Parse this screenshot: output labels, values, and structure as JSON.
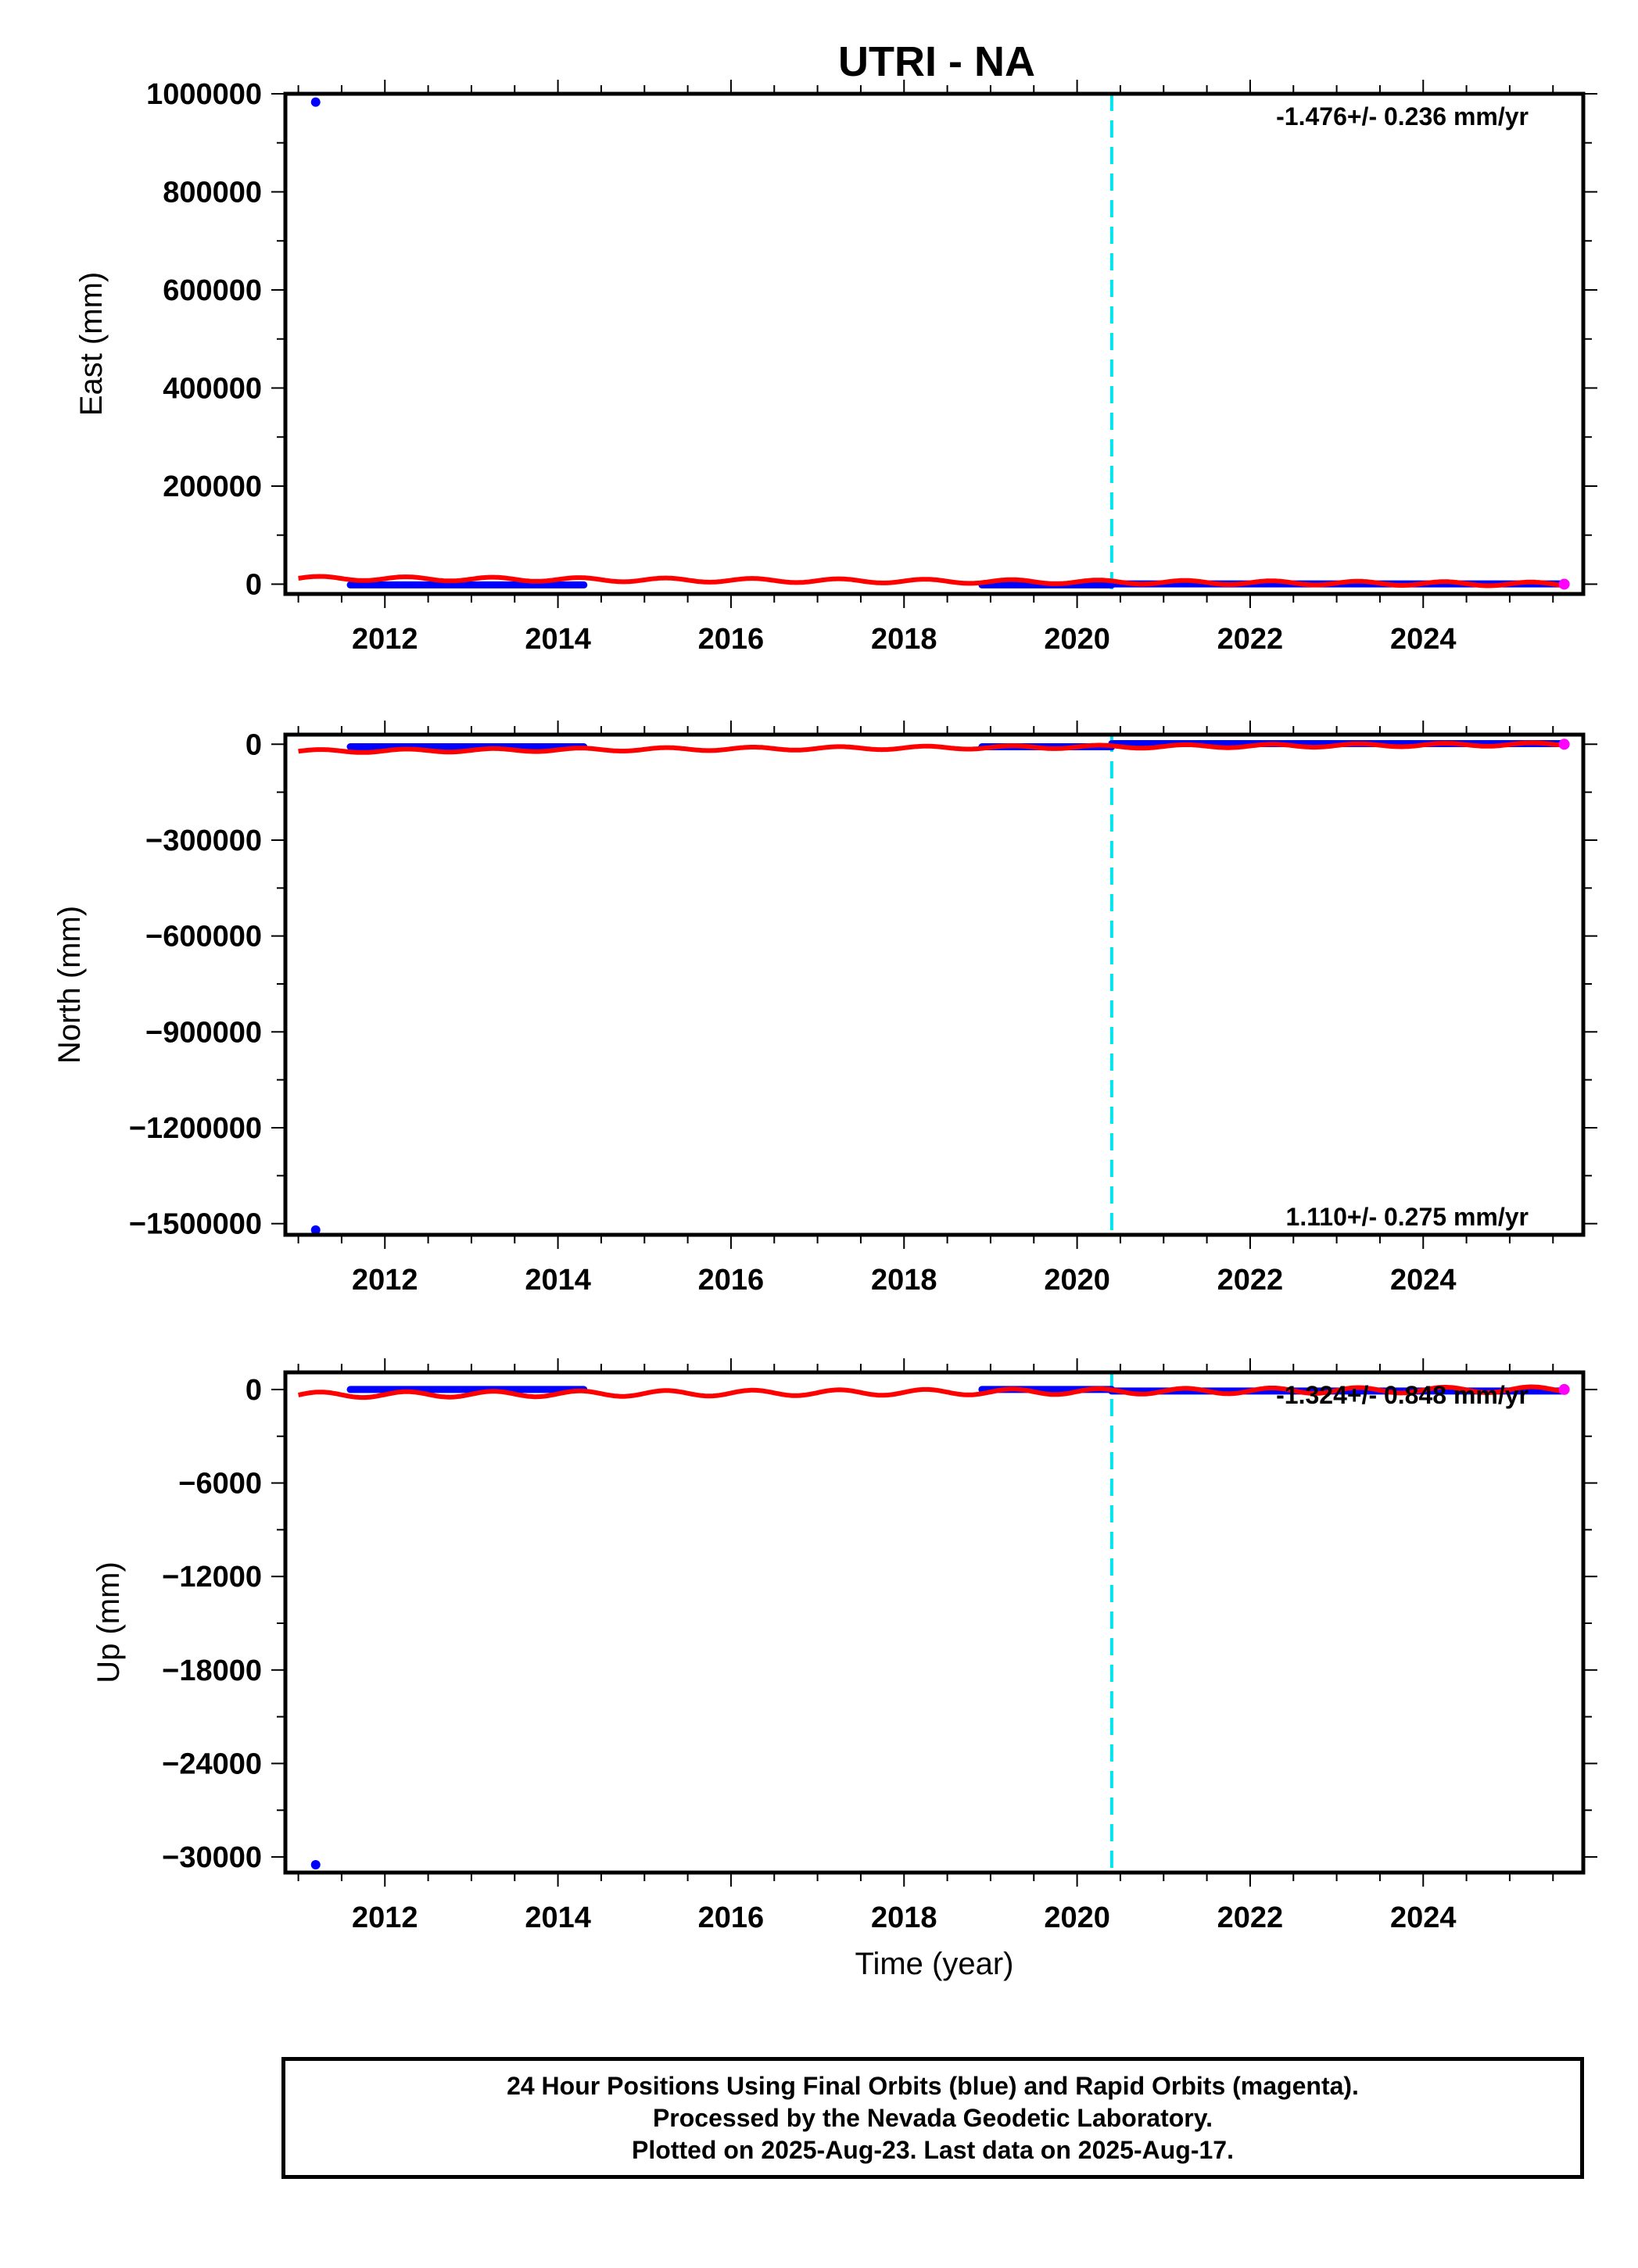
{
  "title": "UTRI - NA",
  "footer": {
    "line1": "24 Hour Positions Using Final Orbits (blue) and Rapid Orbits (magenta).",
    "line2": "Processed by the Nevada Geodetic Laboratory.",
    "line3": "Plotted on 2025-Aug-23. Last data on 2025-Aug-17."
  },
  "colors": {
    "final_orbits": "#0000ff",
    "rapid_orbits": "#ff00ff",
    "model_fit": "#ff0000",
    "equipment_change": "#00e5ee",
    "axes": "#000000"
  },
  "chart_data": [
    {
      "type": "scatter",
      "panel": "east",
      "ylabel": "East (mm)",
      "xlabel": "",
      "xlim": [
        2010.85,
        2025.85
      ],
      "ylim": [
        -20000,
        1000000
      ],
      "x_ticks": [
        2012,
        2014,
        2016,
        2018,
        2020,
        2022,
        2024
      ],
      "x_tick_labels": [
        "2012",
        "2014",
        "2016",
        "2018",
        "2020",
        "2022",
        "2024"
      ],
      "y_ticks": [
        0,
        200000,
        400000,
        600000,
        800000,
        1000000
      ],
      "y_tick_labels": [
        "0",
        "200000",
        "400000",
        "600000",
        "800000",
        "1000000"
      ],
      "rate_annotation": "-1.476+/- 0.236 mm/yr",
      "rate_position": "top-right",
      "outliers": [
        {
          "x": 2011.2,
          "y": 983000
        }
      ],
      "final_segments": [
        {
          "x_start": 2011.6,
          "x_end": 2014.3,
          "y": -1500
        },
        {
          "x_start": 2018.9,
          "x_end": 2020.4,
          "y": -1500
        },
        {
          "x_start": 2020.4,
          "x_end": 2025.6,
          "y": 500
        }
      ],
      "rapid_points": [
        {
          "x": 2025.63,
          "y": 0
        }
      ],
      "model_fit": {
        "x_start": 2011.0,
        "x_end": 2025.6,
        "y_start": 12000,
        "y_end": 0,
        "seasonal_amplitude": 4000
      },
      "equipment_change_year": 2020.4,
      "grid": false
    },
    {
      "type": "scatter",
      "panel": "north",
      "ylabel": "North (mm)",
      "xlabel": "",
      "xlim": [
        2010.85,
        2025.85
      ],
      "ylim": [
        -1535000,
        30000
      ],
      "x_ticks": [
        2012,
        2014,
        2016,
        2018,
        2020,
        2022,
        2024
      ],
      "x_tick_labels": [
        "2012",
        "2014",
        "2016",
        "2018",
        "2020",
        "2022",
        "2024"
      ],
      "y_ticks": [
        0,
        -300000,
        -600000,
        -900000,
        -1200000,
        -1500000
      ],
      "y_tick_labels": [
        "0",
        "−300000",
        "−600000",
        "−900000",
        "−1200000",
        "−1500000"
      ],
      "rate_annotation": "1.110+/- 0.275 mm/yr",
      "rate_position": "bottom-right",
      "outliers": [
        {
          "x": 2011.2,
          "y": -1520000
        }
      ],
      "final_segments": [
        {
          "x_start": 2011.6,
          "x_end": 2014.3,
          "y": -8000
        },
        {
          "x_start": 2018.9,
          "x_end": 2020.4,
          "y": -8000
        },
        {
          "x_start": 2020.4,
          "x_end": 2025.6,
          "y": 2000
        }
      ],
      "rapid_points": [
        {
          "x": 2025.63,
          "y": 0
        }
      ],
      "model_fit": {
        "x_start": 2011.0,
        "x_end": 2025.6,
        "y_start": -22000,
        "y_end": 0,
        "seasonal_amplitude": 5000
      },
      "equipment_change_year": 2020.4,
      "grid": false
    },
    {
      "type": "scatter",
      "panel": "up",
      "ylabel": "Up (mm)",
      "xlabel": "Time (year)",
      "xlim": [
        2010.85,
        2025.85
      ],
      "ylim": [
        -31000,
        1100
      ],
      "x_ticks": [
        2012,
        2014,
        2016,
        2018,
        2020,
        2022,
        2024
      ],
      "x_tick_labels": [
        "2012",
        "2014",
        "2016",
        "2018",
        "2020",
        "2022",
        "2024"
      ],
      "y_ticks": [
        0,
        -6000,
        -12000,
        -18000,
        -24000,
        -30000
      ],
      "y_tick_labels": [
        "0",
        "−6000",
        "−12000",
        "−18000",
        "−24000",
        "−30000"
      ],
      "rate_annotation": "-1.324+/- 0.848 mm/yr",
      "rate_position": "top-right",
      "outliers": [
        {
          "x": 2011.2,
          "y": -30500
        }
      ],
      "final_segments": [
        {
          "x_start": 2011.6,
          "x_end": 2014.3,
          "y": 0
        },
        {
          "x_start": 2018.9,
          "x_end": 2020.4,
          "y": 0
        },
        {
          "x_start": 2020.4,
          "x_end": 2025.6,
          "y": -100
        }
      ],
      "rapid_points": [
        {
          "x": 2025.63,
          "y": 0
        }
      ],
      "model_fit": {
        "x_start": 2011.0,
        "x_end": 2025.6,
        "y_start": -350,
        "y_end": 0,
        "seasonal_amplitude": 180
      },
      "equipment_change_year": 2020.4,
      "grid": false
    }
  ]
}
